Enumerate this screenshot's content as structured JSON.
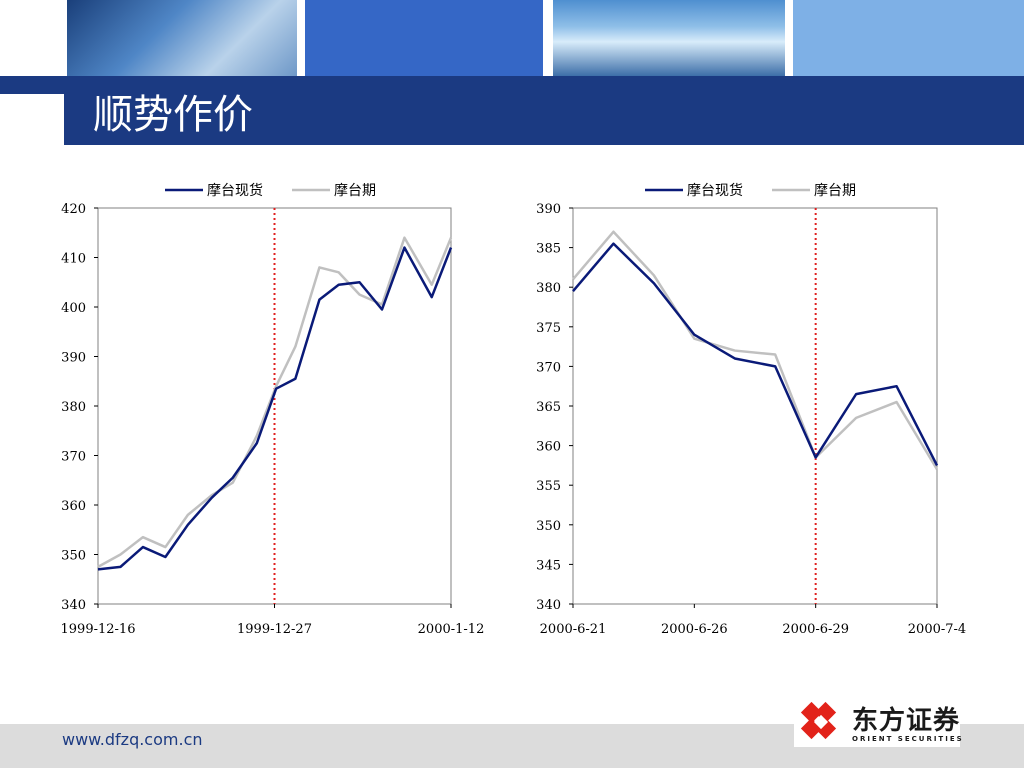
{
  "page": {
    "title": "顺势作价",
    "footer_url": "www.dfzq.com.cn",
    "logo_cn": "东方证券",
    "logo_en": "ORIENT SECURITIES"
  },
  "colors": {
    "spot": "#0a1a78",
    "futures": "#c0c0c0",
    "marker": "#e02020",
    "title_bar": "#1b3a82",
    "logo_red": "#e2231a"
  },
  "chart_data": [
    {
      "type": "line",
      "title": "",
      "xlabel": "",
      "ylabel": "",
      "ylim": [
        340,
        420
      ],
      "yticks": [
        340,
        350,
        360,
        370,
        380,
        390,
        400,
        410,
        420
      ],
      "x_tick_labels": [
        "1999-12-16",
        "1999-12-27",
        "2000-1-12"
      ],
      "x_tick_positions": [
        0,
        11,
        22
      ],
      "legend": "top-center",
      "grid": false,
      "marker_index": 11,
      "series": [
        {
          "name": "摩台现货",
          "values": [
            347,
            347.5,
            351.5,
            349.5,
            356,
            361.5,
            365.5,
            372.5,
            383.5,
            385.5,
            401.5,
            404.5,
            405,
            399.5,
            412,
            402,
            412
          ]
        },
        {
          "name": "摩台期",
          "values": [
            347.5,
            350,
            353.5,
            351.5,
            358,
            362,
            364.5,
            374,
            384,
            392,
            408,
            407,
            402.5,
            400.5,
            414,
            404.5,
            414
          ]
        }
      ],
      "x_index_of_points": [
        0,
        1.4,
        2.8,
        4.2,
        5.6,
        7.1,
        8.4,
        9.9,
        11.1,
        12.3,
        13.8,
        15.0,
        16.3,
        17.7,
        19.1,
        20.8,
        22
      ]
    },
    {
      "type": "line",
      "title": "",
      "xlabel": "",
      "ylabel": "",
      "ylim": [
        340,
        390
      ],
      "yticks": [
        340,
        345,
        350,
        355,
        360,
        365,
        370,
        375,
        380,
        385,
        390
      ],
      "x_tick_labels": [
        "2000-6-21",
        "2000-6-26",
        "2000-6-29",
        "2000-7-4"
      ],
      "x_tick_positions": [
        0,
        3,
        6,
        9
      ],
      "legend": "top-center",
      "grid": false,
      "marker_index": 6,
      "series": [
        {
          "name": "摩台现货",
          "values": [
            379.5,
            385.5,
            380.5,
            374,
            371,
            370,
            358.5,
            366.5,
            367.5,
            357.5
          ]
        },
        {
          "name": "摩台期",
          "values": [
            381,
            387,
            381.5,
            373.5,
            372,
            371.5,
            358.5,
            363.5,
            365.5,
            357
          ]
        }
      ]
    }
  ]
}
